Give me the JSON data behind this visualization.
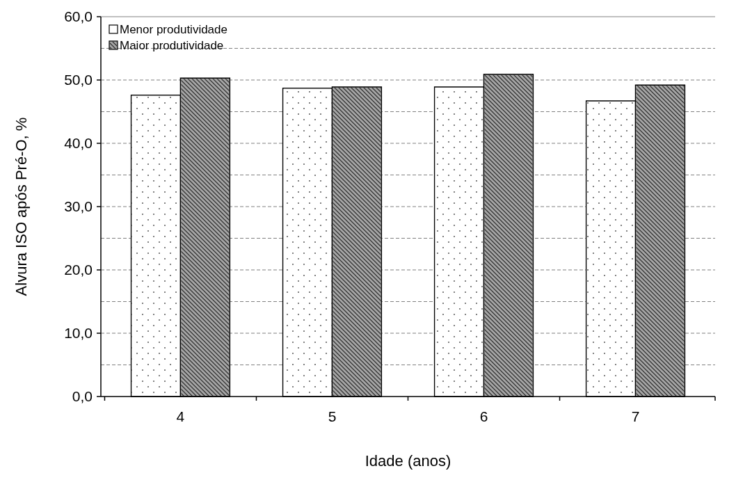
{
  "chart_data": {
    "type": "bar",
    "xlabel": "Idade (anos)",
    "ylabel": "Alvura ISO após Pré-O, %",
    "categories": [
      "4",
      "5",
      "6",
      "7"
    ],
    "series": [
      {
        "name": "Menor produtividade",
        "color": "#ffffff",
        "values": [
          47.6,
          48.7,
          48.9,
          46.7
        ]
      },
      {
        "name": "Maior produtividade",
        "color": "#a6a6a6",
        "values": [
          50.3,
          48.9,
          50.9,
          49.2
        ]
      }
    ],
    "ylim": [
      0,
      60
    ],
    "yticks": [
      {
        "value": 0,
        "label": "0,0"
      },
      {
        "value": 5,
        "label": null
      },
      {
        "value": 10,
        "label": "10,0"
      },
      {
        "value": 15,
        "label": null
      },
      {
        "value": 20,
        "label": "20,0"
      },
      {
        "value": 25,
        "label": null
      },
      {
        "value": 30,
        "label": "30,0"
      },
      {
        "value": 35,
        "label": null
      },
      {
        "value": 40,
        "label": "40,0"
      },
      {
        "value": 45,
        "label": null
      },
      {
        "value": 50,
        "label": "50,0"
      },
      {
        "value": 55,
        "label": null
      },
      {
        "value": 60,
        "label": "60,0"
      }
    ],
    "grid": "y",
    "legend": "top left"
  }
}
